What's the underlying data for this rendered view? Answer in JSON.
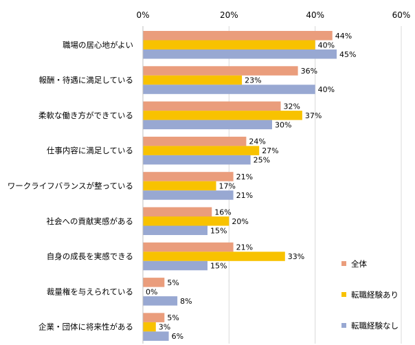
{
  "chart_data": {
    "type": "bar",
    "orientation": "horizontal",
    "title": "",
    "xlabel": "",
    "ylabel": "",
    "xlim": [
      0,
      60
    ],
    "x_ticks": [
      "0%",
      "20%",
      "40%",
      "60%"
    ],
    "x_axis_position": "top",
    "grid": true,
    "legend_position": "bottom-right",
    "value_suffix": "%",
    "categories": [
      "職場の居心地がよい",
      "報酬・待遇に満足している",
      "柔軟な働き方ができている",
      "仕事内容に満足している",
      "ワークライフバランスが整っている",
      "社会への貢献実感がある",
      "自身の成長を実感できる",
      "裁量権を与えられている",
      "企業・団体に将来性がある"
    ],
    "series": [
      {
        "name": "全体",
        "color": "#EA9D7C",
        "values": [
          44,
          36,
          32,
          24,
          21,
          16,
          21,
          5,
          5
        ]
      },
      {
        "name": "転職経験あり",
        "color": "#F8C200",
        "values": [
          40,
          23,
          37,
          27,
          17,
          20,
          33,
          0,
          3
        ]
      },
      {
        "name": "転職経験なし",
        "color": "#98A8D2",
        "values": [
          45,
          40,
          30,
          25,
          21,
          15,
          15,
          8,
          6
        ]
      }
    ]
  }
}
